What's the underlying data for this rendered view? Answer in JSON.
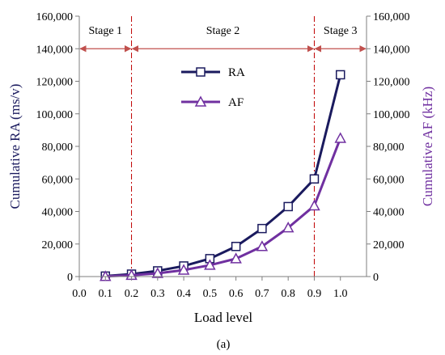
{
  "chart_data": {
    "type": "line",
    "xlabel": "Load level",
    "ylabel_left": "Cumulative RA (ms/v)",
    "ylabel_right": "Cumulative AF (kHz)",
    "panel_label": "(a)",
    "x_ticks": [
      "0.0",
      "0.1",
      "0.2",
      "0.3",
      "0.4",
      "0.5",
      "0.6",
      "0.7",
      "0.8",
      "0.9",
      "1.0"
    ],
    "y_left_ticks": [
      "0",
      "20,000",
      "40,000",
      "60,000",
      "80,000",
      "100,000",
      "120,000",
      "140,000",
      "160,000"
    ],
    "y_right_ticks": [
      "0",
      "20,000",
      "40,000",
      "60,000",
      "80,000",
      "100,000",
      "120,000",
      "140,000",
      "160,000"
    ],
    "xlim": [
      0,
      1.1
    ],
    "ylim_left": [
      0,
      160000
    ],
    "ylim_right": [
      0,
      160000
    ],
    "grid": false,
    "legend_position": "upper-center",
    "x": [
      0.1,
      0.2,
      0.3,
      0.4,
      0.5,
      0.6,
      0.7,
      0.8,
      0.9,
      1.0
    ],
    "series": [
      {
        "name": "RA",
        "axis": "left",
        "marker": "square",
        "color": "#1a1a5e",
        "values": [
          300,
          1500,
          3500,
          6500,
          11000,
          18500,
          29500,
          43000,
          60000,
          124000
        ]
      },
      {
        "name": "AF",
        "axis": "right",
        "marker": "triangle",
        "color": "#7030a0",
        "values": [
          100,
          800,
          2000,
          4000,
          7000,
          11000,
          18500,
          30000,
          43500,
          85000
        ]
      }
    ],
    "stage_boundaries": [
      0.2,
      0.9
    ],
    "stage_boundary_color": "#c00000",
    "stages": [
      {
        "label": "Stage 1",
        "from": 0.0,
        "to": 0.2
      },
      {
        "label": "Stage 2",
        "from": 0.2,
        "to": 0.9
      },
      {
        "label": "Stage 3",
        "from": 0.9,
        "to": 1.1
      }
    ],
    "stage_arrow_y": 140000,
    "stage_arrow_color": "#c0504d",
    "left_axis_color": "#1a1a5e",
    "right_axis_color": "#7030a0"
  }
}
